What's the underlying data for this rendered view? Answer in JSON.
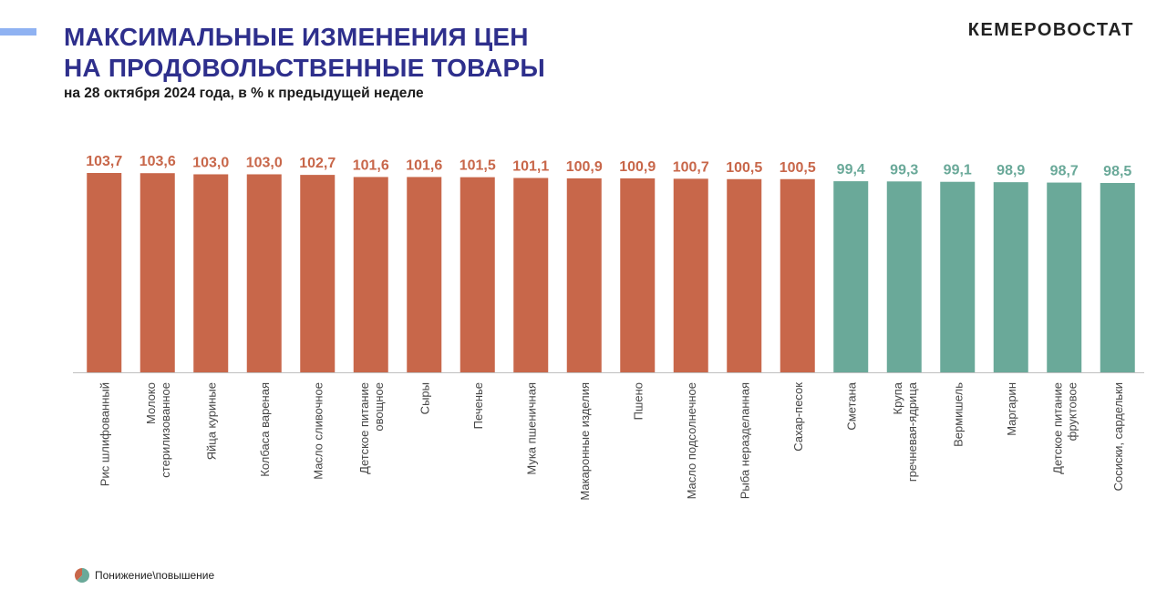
{
  "header": {
    "title_line1": "МАКСИМАЛЬНЫЕ ИЗМЕНЕНИЯ ЦЕН",
    "title_line2": "НА ПРОДОВОЛЬСТВЕННЫЕ ТОВАРЫ",
    "subtitle": "на 28 октября 2024 года, в % к предыдущей неделе",
    "brand": "КЕМЕРОВОСТАТ"
  },
  "legend": {
    "label": "Понижение\\повышение"
  },
  "colors": {
    "increase": "#c8674a",
    "decrease": "#6aa999",
    "title": "#2e2f8c",
    "accent": "#8fb2f2"
  },
  "chart_data": {
    "type": "bar",
    "title": "",
    "xlabel": "",
    "ylabel": "",
    "ylim": [
      0,
      103.7
    ],
    "grid": false,
    "categories": [
      [
        "Рис шлифованный"
      ],
      [
        "Молоко",
        "стерилизованное"
      ],
      [
        "Яйца куриные"
      ],
      [
        "Колбаса вареная"
      ],
      [
        "Масло сливочное"
      ],
      [
        "Детское питание",
        "овощное"
      ],
      [
        "Сыры"
      ],
      [
        "Печенье"
      ],
      [
        "Мука пшеничная"
      ],
      [
        "Макаронные изделия"
      ],
      [
        "Пшено"
      ],
      [
        "Масло подсолнечное"
      ],
      [
        "Рыба неразделанная"
      ],
      [
        "Сахар-песок"
      ],
      [
        "Сметана"
      ],
      [
        "Крупа",
        "гречневая-ядрица"
      ],
      [
        "Вермишель"
      ],
      [
        "Маргарин"
      ],
      [
        "Детское питание",
        "фруктовое"
      ],
      [
        "Сосиски, сардельки"
      ]
    ],
    "values": [
      103.7,
      103.6,
      103.0,
      103.0,
      102.7,
      101.6,
      101.6,
      101.5,
      101.1,
      100.9,
      100.9,
      100.7,
      100.5,
      100.5,
      99.4,
      99.3,
      99.1,
      98.9,
      98.7,
      98.5
    ],
    "value_labels": [
      "103,7",
      "103,6",
      "103,0",
      "103,0",
      "102,7",
      "101,6",
      "101,6",
      "101,5",
      "101,1",
      "100,9",
      "100,9",
      "100,7",
      "100,5",
      "100,5",
      "99,4",
      "99,3",
      "99,1",
      "98,9",
      "98,7",
      "98,5"
    ],
    "direction": [
      "up",
      "up",
      "up",
      "up",
      "up",
      "up",
      "up",
      "up",
      "up",
      "up",
      "up",
      "up",
      "up",
      "up",
      "down",
      "down",
      "down",
      "down",
      "down",
      "down"
    ]
  }
}
